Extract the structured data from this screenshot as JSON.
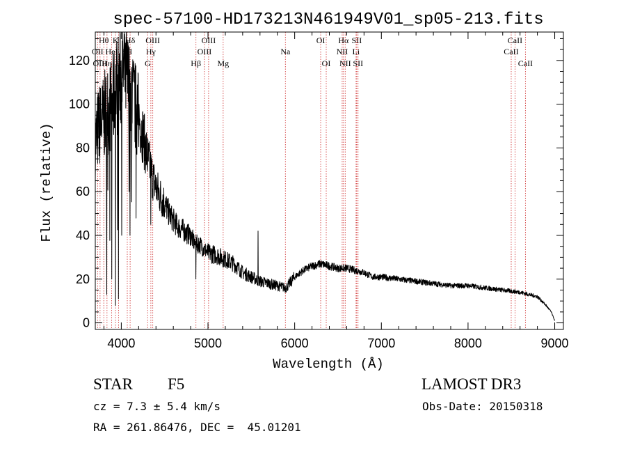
{
  "chart_data": {
    "type": "line",
    "title": "spec-57100-HD173213N461949V01_sp05-213.fits",
    "xlabel": "Wavelength (Å)",
    "ylabel": "Flux (relative)",
    "xlim": [
      3700,
      9100
    ],
    "ylim": [
      -3,
      133
    ],
    "xticks": [
      4000,
      5000,
      6000,
      7000,
      8000,
      9000
    ],
    "yticks": [
      0,
      20,
      40,
      60,
      80,
      100,
      120
    ],
    "grid": false,
    "line_color": "#000000",
    "marker_color": "#d23c3c",
    "spectrum_anchors": {
      "x": [
        3700,
        3740,
        3780,
        3820,
        3860,
        3900,
        3940,
        3980,
        4020,
        4060,
        4100,
        4150,
        4200,
        4250,
        4300,
        4350,
        4400,
        4450,
        4500,
        4550,
        4600,
        4650,
        4700,
        4750,
        4800,
        4850,
        4900,
        4950,
        5000,
        5100,
        5200,
        5300,
        5400,
        5500,
        5600,
        5700,
        5800,
        5900,
        6000,
        6100,
        6200,
        6300,
        6400,
        6500,
        6600,
        6700,
        6800,
        6900,
        7000,
        7200,
        7400,
        7600,
        7800,
        8000,
        8200,
        8400,
        8600,
        8700,
        8800,
        8900,
        8960,
        9000
      ],
      "y": [
        82,
        90,
        92,
        96,
        98,
        100,
        108,
        110,
        116,
        112,
        106,
        100,
        94,
        86,
        76,
        68,
        62,
        58,
        55,
        50,
        47,
        44,
        43,
        41,
        40,
        36,
        36,
        34,
        32,
        31,
        29,
        27,
        23,
        21,
        19,
        18,
        17,
        16,
        21,
        24,
        26,
        27,
        26,
        25,
        25,
        24,
        23,
        21,
        21,
        20,
        19,
        18,
        17,
        17,
        16,
        15,
        14,
        13,
        12,
        8,
        5,
        1
      ]
    },
    "spikes": [
      {
        "x": 3833,
        "y": 13
      },
      {
        "x": 3889,
        "y": 20
      },
      {
        "x": 3933,
        "y": 8
      },
      {
        "x": 3968,
        "y": 11
      },
      {
        "x": 4050,
        "y": 128
      },
      {
        "x": 4101,
        "y": 40
      },
      {
        "x": 4340,
        "y": 45
      },
      {
        "x": 4861,
        "y": 20
      },
      {
        "x": 5577,
        "y": 42
      }
    ],
    "lines": [
      {
        "name": "Hθ",
        "x": 3798,
        "row": 1
      },
      {
        "name": "OII",
        "x": 3727,
        "row": 2
      },
      {
        "name": "OIII",
        "x": 3755,
        "row": 3
      },
      {
        "name": "Hη",
        "x": 3835,
        "row": 3
      },
      {
        "name": "HeI",
        "x": 3889,
        "row": 2
      },
      {
        "name": "K",
        "x": 3934,
        "row": 1
      },
      {
        "name": "H",
        "x": 3969,
        "row": 3
      },
      {
        "name": "SII",
        "x": 4069,
        "row": 2
      },
      {
        "name": "Hδ",
        "x": 4102,
        "row": 1
      },
      {
        "name": "OIII",
        "x": 4363,
        "row": 1
      },
      {
        "name": "Hγ",
        "x": 4341,
        "row": 2
      },
      {
        "name": "G",
        "x": 4304,
        "row": 3
      },
      {
        "name": "Hβ",
        "x": 4861,
        "row": 3
      },
      {
        "name": "OIII",
        "x": 5007,
        "row": 1
      },
      {
        "name": "OIII",
        "x": 4959,
        "row": 2
      },
      {
        "name": "Mg",
        "x": 5175,
        "row": 3
      },
      {
        "name": "Na",
        "x": 5893,
        "row": 2
      },
      {
        "name": "OI",
        "x": 6300,
        "row": 1
      },
      {
        "name": "OI",
        "x": 6364,
        "row": 3
      },
      {
        "name": "Hα",
        "x": 6563,
        "row": 1
      },
      {
        "name": "NII",
        "x": 6548,
        "row": 2
      },
      {
        "name": "NII",
        "x": 6583,
        "row": 3
      },
      {
        "name": "SII",
        "x": 6716,
        "row": 1
      },
      {
        "name": "Li",
        "x": 6708,
        "row": 2
      },
      {
        "name": "SII",
        "x": 6731,
        "row": 3
      },
      {
        "name": "CaII",
        "x": 8542,
        "row": 1
      },
      {
        "name": "CaII",
        "x": 8498,
        "row": 2
      },
      {
        "name": "CaII",
        "x": 8662,
        "row": 3
      }
    ]
  },
  "footer": {
    "object_class": "STAR",
    "subclass": "F5",
    "survey": "LAMOST DR3",
    "cz": "cz = 7.3 ± 5.4 km/s",
    "obs_date": "Obs-Date: 20150318",
    "coords": "RA = 261.86476, DEC =  45.01201"
  }
}
